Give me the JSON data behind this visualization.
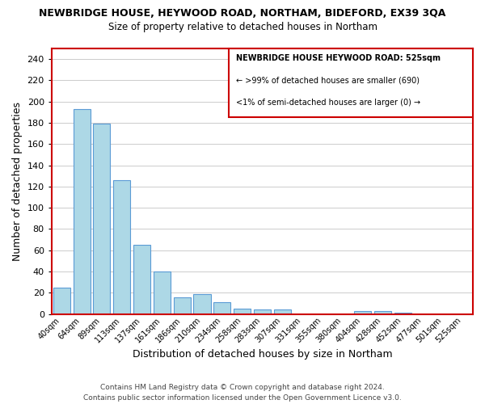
{
  "title": "NEWBRIDGE HOUSE, HEYWOOD ROAD, NORTHAM, BIDEFORD, EX39 3QA",
  "subtitle": "Size of property relative to detached houses in Northam",
  "xlabel": "Distribution of detached houses by size in Northam",
  "ylabel": "Number of detached properties",
  "bar_labels": [
    "40sqm",
    "64sqm",
    "89sqm",
    "113sqm",
    "137sqm",
    "161sqm",
    "186sqm",
    "210sqm",
    "234sqm",
    "258sqm",
    "283sqm",
    "307sqm",
    "331sqm",
    "355sqm",
    "380sqm",
    "404sqm",
    "428sqm",
    "452sqm",
    "477sqm",
    "501sqm",
    "525sqm"
  ],
  "bar_values": [
    25,
    193,
    179,
    126,
    65,
    40,
    16,
    19,
    11,
    5,
    4,
    4,
    0,
    0,
    0,
    3,
    3,
    1,
    0,
    0,
    0
  ],
  "bar_color": "#add8e6",
  "bar_edge_color": "#5b9bd5",
  "highlight_edge_color": "#cc0000",
  "box_text_line1": "NEWBRIDGE HOUSE HEYWOOD ROAD: 525sqm",
  "box_text_line2": "← >99% of detached houses are smaller (690)",
  "box_text_line3": "<1% of semi-detached houses are larger (0) →",
  "ylim": [
    0,
    250
  ],
  "yticks": [
    0,
    20,
    40,
    60,
    80,
    100,
    120,
    140,
    160,
    180,
    200,
    220,
    240
  ],
  "footer1": "Contains HM Land Registry data © Crown copyright and database right 2024.",
  "footer2": "Contains public sector information licensed under the Open Government Licence v3.0.",
  "bg_color": "#ffffff",
  "grid_color": "#cccccc"
}
